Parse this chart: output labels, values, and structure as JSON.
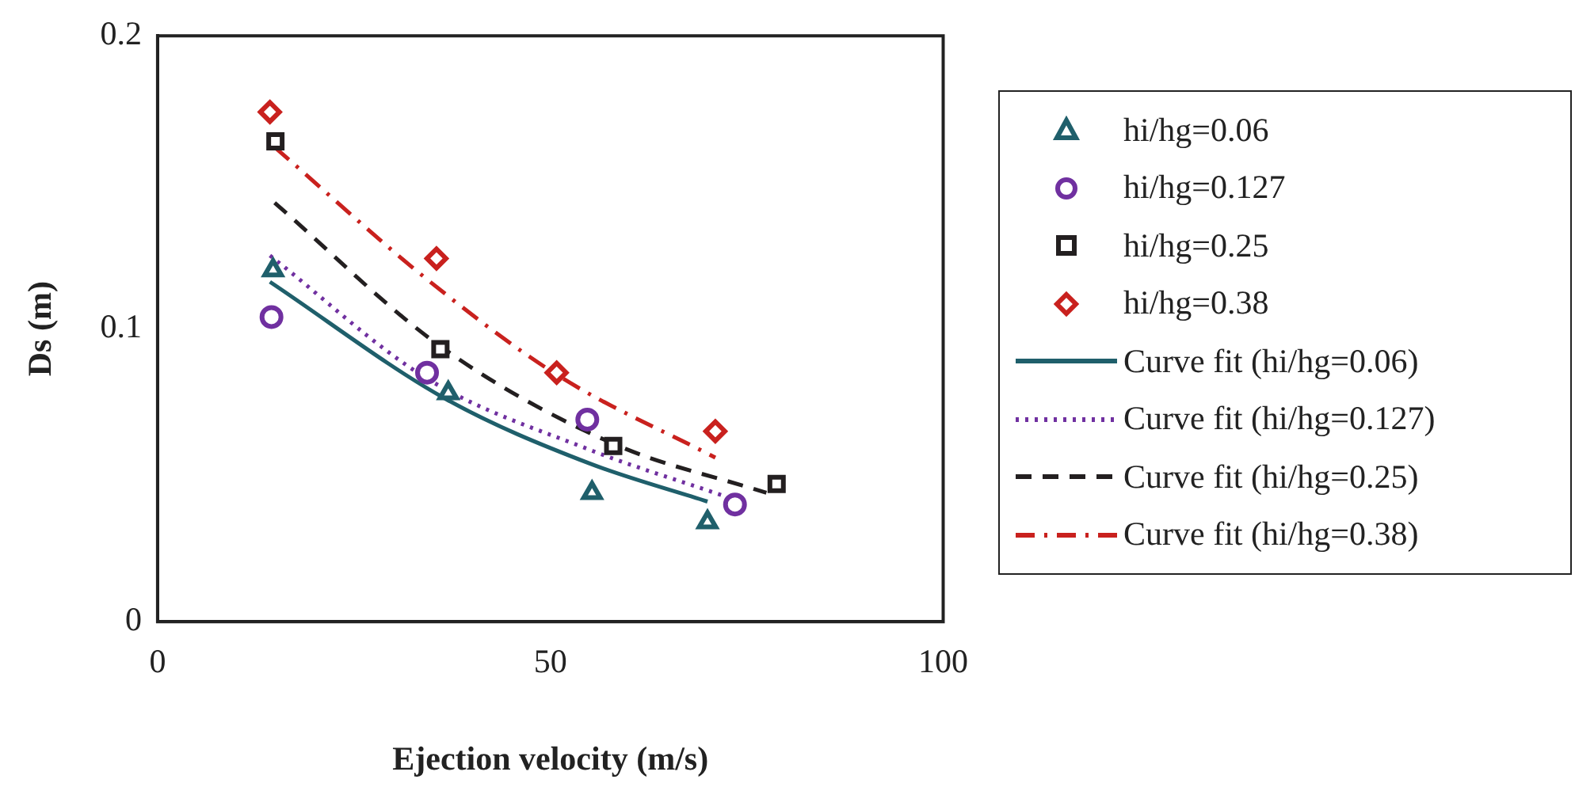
{
  "chart_data": {
    "type": "scatter",
    "xlabel": "Ejection velocity (m/s)",
    "ylabel": "Ds (m)",
    "xlim": [
      0,
      100
    ],
    "xticks": [
      0,
      50,
      100
    ],
    "ylim": [
      0,
      0.2
    ],
    "yticks": [
      0,
      0.1,
      0.2
    ],
    "grid": false,
    "legend": "right",
    "series": [
      {
        "name": "hi/hg=0.06",
        "type": "scatter",
        "marker": "triangle",
        "color": "#1f5f6b",
        "x": [
          14.7,
          37,
          55.3,
          70
        ],
        "values": [
          0.12,
          0.078,
          0.044,
          0.034
        ]
      },
      {
        "name": "hi/hg=0.127",
        "type": "scatter",
        "marker": "circle",
        "color": "#7030a0",
        "x": [
          14.5,
          34.3,
          54.7,
          73.5
        ],
        "values": [
          0.104,
          0.085,
          0.069,
          0.04
        ]
      },
      {
        "name": "hi/hg=0.25",
        "type": "scatter",
        "marker": "square",
        "color": "#231f20",
        "x": [
          15,
          36,
          58,
          78.8
        ],
        "values": [
          0.164,
          0.093,
          0.06,
          0.047
        ]
      },
      {
        "name": "hi/hg=0.38",
        "type": "scatter",
        "marker": "diamond",
        "color": "#c9211e",
        "x": [
          14.3,
          35.5,
          50.8,
          71
        ],
        "values": [
          0.174,
          0.124,
          0.085,
          0.065
        ]
      },
      {
        "name": "Curve fit (hi/hg=0.06)",
        "type": "line",
        "line_style": "solid",
        "marker": "none",
        "color": "#1f5f6b",
        "x": [
          14.3,
          36.7,
          55,
          70
        ],
        "values": [
          0.116,
          0.076,
          0.054,
          0.041
        ]
      },
      {
        "name": "Curve fit (hi/hg=0.127)",
        "type": "line",
        "line_style": "dotted",
        "marker": "none",
        "color": "#7030a0",
        "x": [
          14.3,
          34.3,
          54.7,
          72
        ],
        "values": [
          0.125,
          0.083,
          0.059,
          0.043
        ]
      },
      {
        "name": "Curve fit (hi/hg=0.25)",
        "type": "line",
        "line_style": "dashed",
        "marker": "none",
        "color": "#231f20",
        "x": [
          14.9,
          36,
          57.8,
          77.5
        ],
        "values": [
          0.143,
          0.094,
          0.061,
          0.044
        ]
      },
      {
        "name": "Curve fit (hi/hg=0.38)",
        "type": "line",
        "line_style": "dashdot",
        "marker": "none",
        "color": "#c9211e",
        "x": [
          14.9,
          34.7,
          51,
          71
        ],
        "values": [
          0.162,
          0.116,
          0.084,
          0.056
        ]
      }
    ]
  }
}
